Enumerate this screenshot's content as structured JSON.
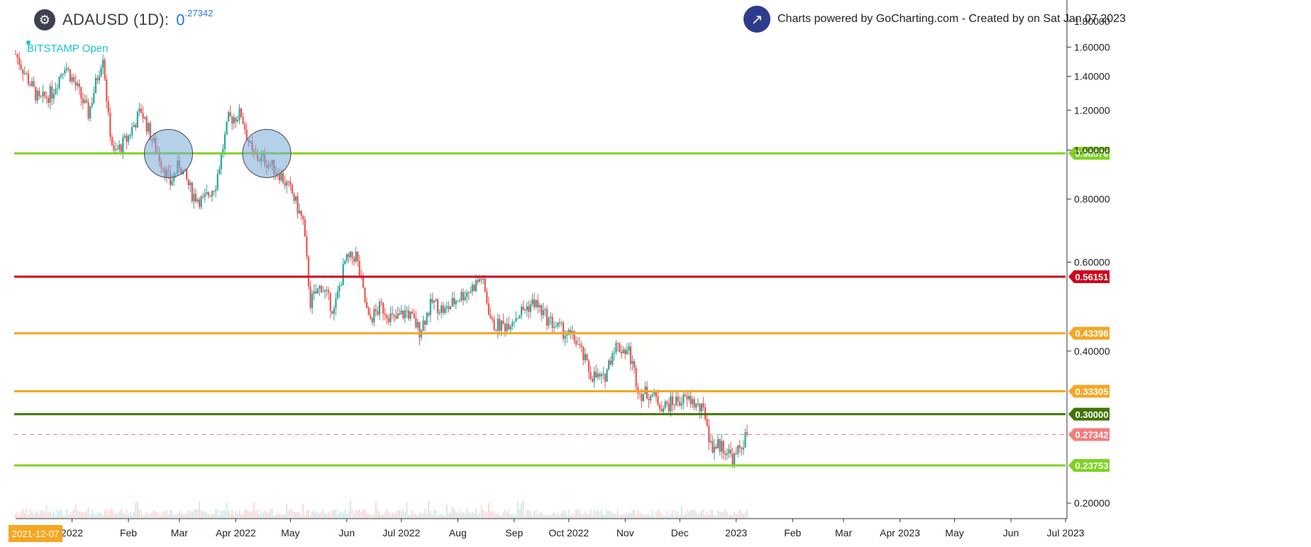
{
  "header": {
    "logo_icon": "gear-icon",
    "symbol_title": "ADAUSD (1D):",
    "price_main": "0",
    "price_sup": ".27342",
    "exchange_label": "BITSTAMP Open"
  },
  "credit": {
    "icon": "trend-up-icon",
    "text": "Charts powered by GoCharting.com - Created by  on Sat Jan 07 2023"
  },
  "crosshair_date": "2021-12-07",
  "colors": {
    "up": "#26a69a",
    "down": "#ef5350",
    "lime": "#7ed321",
    "red": "#d0021b",
    "orange": "#f5a623",
    "darkgreen": "#417505",
    "current": "#f47c7c"
  },
  "chart_data": {
    "type": "candlestick",
    "symbol": "ADAUSD",
    "interval": "1D",
    "exchange": "BITSTAMP",
    "y_scale": "log",
    "ylim": [
      0.19,
      1.92
    ],
    "xlim": [
      "2021-12-01",
      "2023-07-01"
    ],
    "y_ticks": [
      "1.80000",
      "1.60000",
      "1.40000",
      "1.20000",
      "1.00000",
      "0.80000",
      "0.60000",
      "0.40000",
      "0.20000"
    ],
    "x_ticks": [
      {
        "label": "2022",
        "date": "2022-01-01"
      },
      {
        "label": "Feb",
        "date": "2022-02-01"
      },
      {
        "label": "Mar",
        "date": "2022-03-01"
      },
      {
        "label": "Apr 2022",
        "date": "2022-04-01"
      },
      {
        "label": "May",
        "date": "2022-05-01"
      },
      {
        "label": "Jun",
        "date": "2022-06-01"
      },
      {
        "label": "Jul 2022",
        "date": "2022-07-01"
      },
      {
        "label": "Aug",
        "date": "2022-08-01"
      },
      {
        "label": "Sep",
        "date": "2022-09-01"
      },
      {
        "label": "Oct 2022",
        "date": "2022-10-01"
      },
      {
        "label": "Nov",
        "date": "2022-11-01"
      },
      {
        "label": "Dec",
        "date": "2022-12-01"
      },
      {
        "label": "2023",
        "date": "2023-01-01"
      },
      {
        "label": "Feb",
        "date": "2023-02-01"
      },
      {
        "label": "Mar",
        "date": "2023-03-01"
      },
      {
        "label": "Apr 2023",
        "date": "2023-04-01"
      },
      {
        "label": "May",
        "date": "2023-05-01"
      },
      {
        "label": "Jun",
        "date": "2023-06-01"
      },
      {
        "label": "Jul 2023",
        "date": "2023-07-01"
      }
    ],
    "horizontal_levels": [
      {
        "value": 0.98576,
        "label": "0.98576",
        "color": "#7ed321",
        "style": "solid"
      },
      {
        "value": 0.56151,
        "label": "0.56151",
        "color": "#d0021b",
        "style": "solid"
      },
      {
        "value": 0.43396,
        "label": "0.43396",
        "color": "#f5a623",
        "style": "solid"
      },
      {
        "value": 0.33305,
        "label": "0.33305",
        "color": "#f5a623",
        "style": "solid"
      },
      {
        "value": 0.3,
        "label": "0.30000",
        "color": "#417505",
        "style": "solid"
      },
      {
        "value": 0.27342,
        "label": "0.27342",
        "color": "#f47c7c",
        "style": "dashed"
      },
      {
        "value": 0.23753,
        "label": "0.23753",
        "color": "#7ed321",
        "style": "solid"
      }
    ],
    "annotations": [
      {
        "shape": "circle",
        "date": "2022-02-23",
        "value": 0.985
      },
      {
        "shape": "circle",
        "date": "2022-04-18",
        "value": 0.985
      }
    ],
    "price_path": [
      {
        "date": "2021-12-01",
        "close": 1.55
      },
      {
        "date": "2021-12-07",
        "close": 1.4
      },
      {
        "date": "2021-12-14",
        "close": 1.25
      },
      {
        "date": "2021-12-21",
        "close": 1.3
      },
      {
        "date": "2021-12-28",
        "close": 1.48
      },
      {
        "date": "2022-01-04",
        "close": 1.32
      },
      {
        "date": "2022-01-10",
        "close": 1.18
      },
      {
        "date": "2022-01-18",
        "close": 1.55
      },
      {
        "date": "2022-01-21",
        "close": 1.15
      },
      {
        "date": "2022-01-24",
        "close": 0.98
      },
      {
        "date": "2022-01-31",
        "close": 1.05
      },
      {
        "date": "2022-02-08",
        "close": 1.2
      },
      {
        "date": "2022-02-14",
        "close": 1.05
      },
      {
        "date": "2022-02-24",
        "close": 0.86
      },
      {
        "date": "2022-03-01",
        "close": 0.94
      },
      {
        "date": "2022-03-08",
        "close": 0.82
      },
      {
        "date": "2022-03-14",
        "close": 0.79
      },
      {
        "date": "2022-03-21",
        "close": 0.86
      },
      {
        "date": "2022-03-28",
        "close": 1.15
      },
      {
        "date": "2022-04-04",
        "close": 1.18
      },
      {
        "date": "2022-04-10",
        "close": 0.98
      },
      {
        "date": "2022-04-18",
        "close": 0.95
      },
      {
        "date": "2022-04-25",
        "close": 0.9
      },
      {
        "date": "2022-05-02",
        "close": 0.82
      },
      {
        "date": "2022-05-08",
        "close": 0.72
      },
      {
        "date": "2022-05-12",
        "close": 0.5
      },
      {
        "date": "2022-05-18",
        "close": 0.54
      },
      {
        "date": "2022-05-25",
        "close": 0.48
      },
      {
        "date": "2022-05-31",
        "close": 0.6
      },
      {
        "date": "2022-06-06",
        "close": 0.62
      },
      {
        "date": "2022-06-13",
        "close": 0.46
      },
      {
        "date": "2022-06-20",
        "close": 0.49
      },
      {
        "date": "2022-06-27",
        "close": 0.46
      },
      {
        "date": "2022-07-04",
        "close": 0.48
      },
      {
        "date": "2022-07-11",
        "close": 0.44
      },
      {
        "date": "2022-07-18",
        "close": 0.5
      },
      {
        "date": "2022-07-25",
        "close": 0.48
      },
      {
        "date": "2022-08-01",
        "close": 0.51
      },
      {
        "date": "2022-08-08",
        "close": 0.53
      },
      {
        "date": "2022-08-14",
        "close": 0.56
      },
      {
        "date": "2022-08-20",
        "close": 0.45
      },
      {
        "date": "2022-08-27",
        "close": 0.45
      },
      {
        "date": "2022-09-05",
        "close": 0.48
      },
      {
        "date": "2022-09-12",
        "close": 0.5
      },
      {
        "date": "2022-09-20",
        "close": 0.46
      },
      {
        "date": "2022-09-27",
        "close": 0.44
      },
      {
        "date": "2022-10-05",
        "close": 0.42
      },
      {
        "date": "2022-10-13",
        "close": 0.36
      },
      {
        "date": "2022-10-20",
        "close": 0.35
      },
      {
        "date": "2022-10-26",
        "close": 0.41
      },
      {
        "date": "2022-11-03",
        "close": 0.4
      },
      {
        "date": "2022-11-09",
        "close": 0.33
      },
      {
        "date": "2022-11-15",
        "close": 0.33
      },
      {
        "date": "2022-11-22",
        "close": 0.31
      },
      {
        "date": "2022-11-30",
        "close": 0.32
      },
      {
        "date": "2022-12-07",
        "close": 0.32
      },
      {
        "date": "2022-12-15",
        "close": 0.3
      },
      {
        "date": "2022-12-18",
        "close": 0.26
      },
      {
        "date": "2022-12-24",
        "close": 0.26
      },
      {
        "date": "2022-12-31",
        "close": 0.245
      },
      {
        "date": "2023-01-07",
        "close": 0.27342
      }
    ]
  }
}
